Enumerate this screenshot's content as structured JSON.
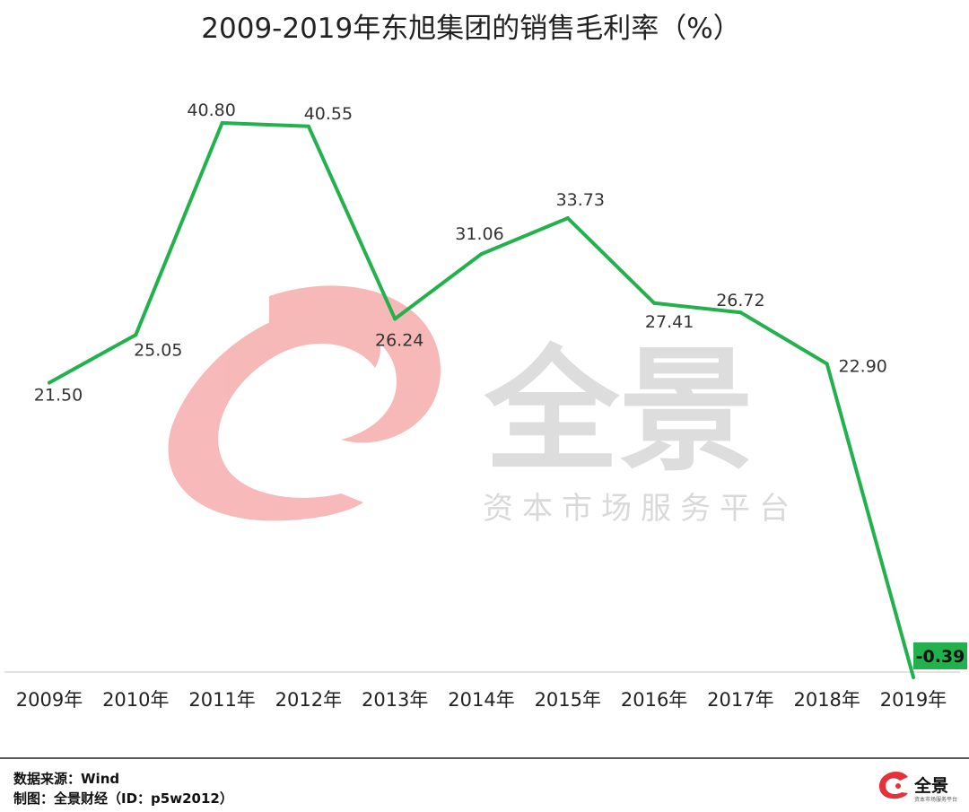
{
  "chart_data": {
    "type": "line",
    "title": "2009-2019年东旭集团的销售毛利率（%）",
    "categories": [
      "2009年",
      "2010年",
      "2011年",
      "2012年",
      "2013年",
      "2014年",
      "2015年",
      "2016年",
      "2017年",
      "2018年",
      "2019年"
    ],
    "series": [
      {
        "values": [
          21.5,
          25.05,
          40.8,
          40.55,
          26.24,
          31.06,
          33.73,
          27.41,
          26.72,
          22.9,
          -0.39
        ]
      }
    ],
    "data_labels": [
      "21.50",
      "25.05",
      "40.80",
      "40.55",
      "26.24",
      "31.06",
      "33.73",
      "27.41",
      "26.72",
      "22.90",
      "-0.39"
    ],
    "highlighted_label": "-0.39",
    "ylim": [
      0,
      45
    ],
    "grid": false,
    "legend": "none",
    "line_color": "#22b14c",
    "highlight_color": "#22b14c"
  },
  "watermark": {
    "brand": "全景",
    "subtitle": "资本市场服务平台",
    "logo_color": "#f4a7a7"
  },
  "footer": {
    "source": "数据来源：Wind",
    "maker": "制图：全景财经（ID：p5w2012）",
    "logo_text": "全景",
    "logo_subtext": "资本市场服务平台",
    "logo_color": "#e5323a"
  }
}
